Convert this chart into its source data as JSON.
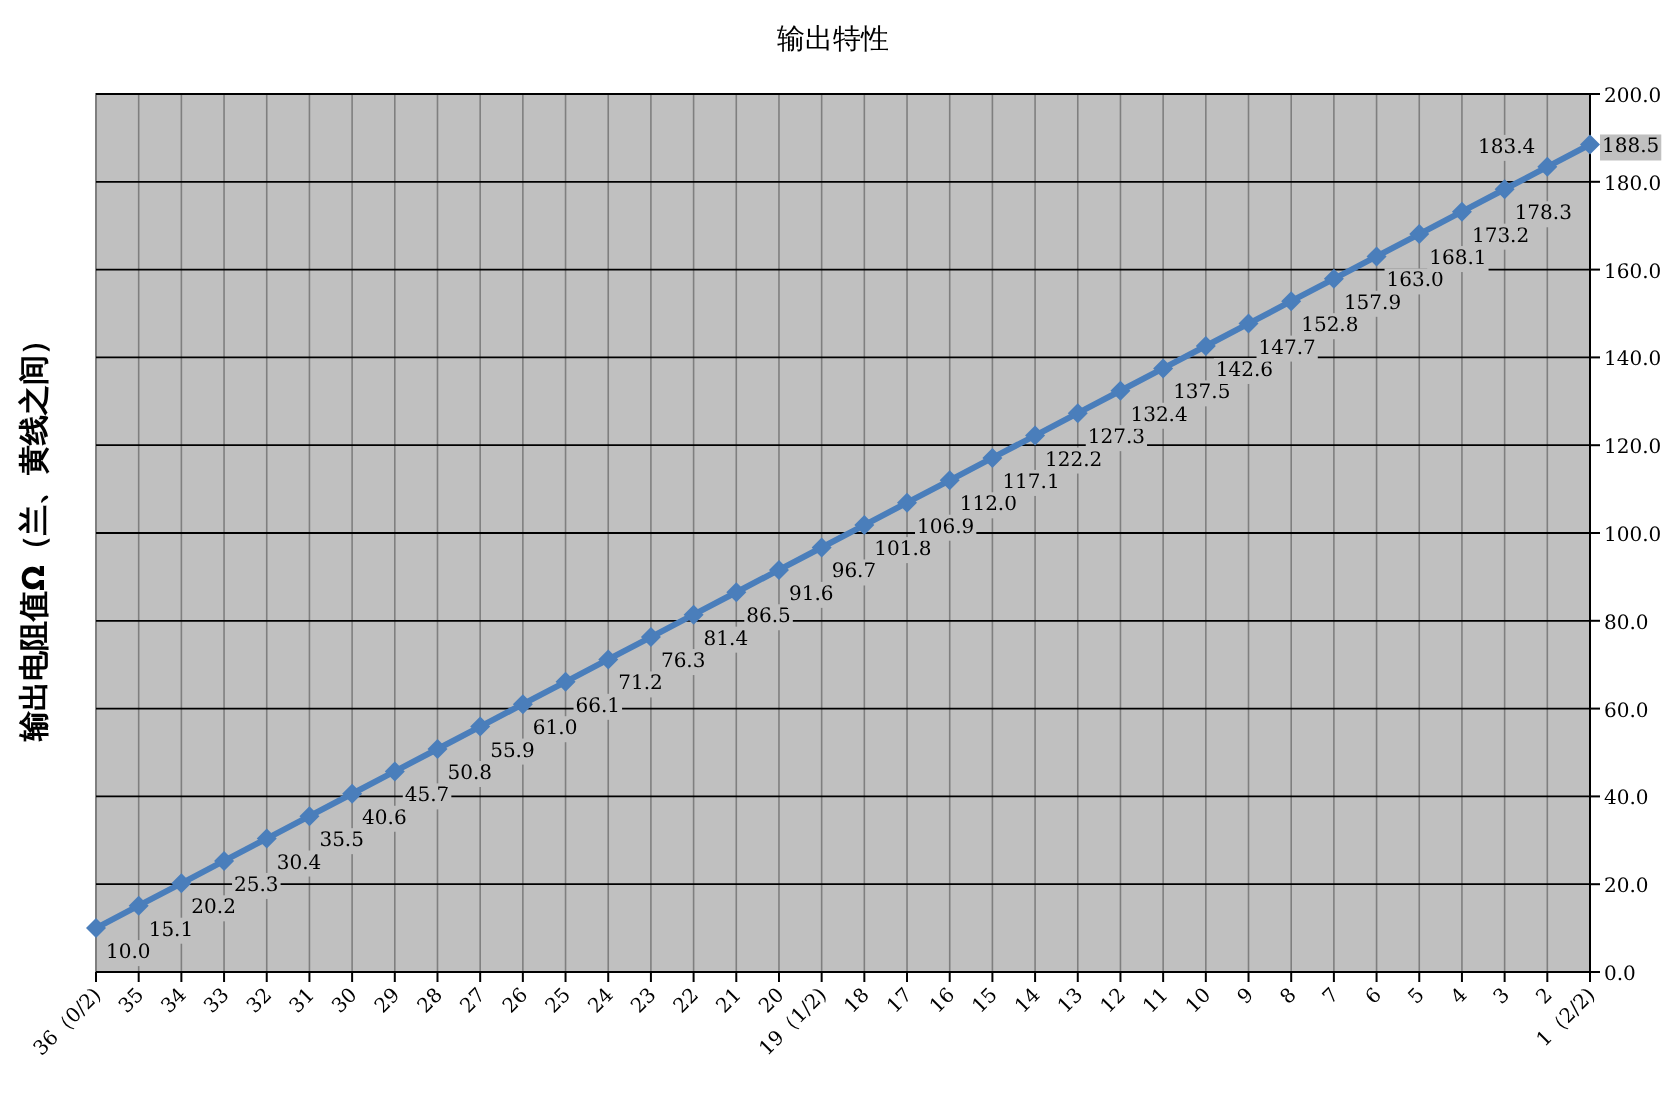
{
  "chart_data": {
    "type": "line",
    "title": "输出特性",
    "ylabel": "输出电阻值Ω（兰、黄线之间）",
    "categories": [
      "36（0/2)",
      "35",
      "34",
      "33",
      "32",
      "31",
      "30",
      "29",
      "28",
      "27",
      "26",
      "25",
      "24",
      "23",
      "22",
      "21",
      "20",
      "19（1/2)",
      "18",
      "17",
      "16",
      "15",
      "14",
      "13",
      "12",
      "11",
      "10",
      "9",
      "8",
      "7",
      "6",
      "5",
      "4",
      "3",
      "2",
      "1（2/2)"
    ],
    "series": [
      {
        "color": "#4a7ebb",
        "values": [
          10.0,
          15.1,
          20.2,
          25.3,
          30.4,
          35.5,
          40.6,
          45.7,
          50.8,
          55.9,
          61.0,
          66.1,
          71.2,
          76.3,
          81.4,
          86.5,
          91.6,
          96.7,
          101.8,
          106.9,
          112.0,
          117.1,
          122.2,
          127.3,
          132.4,
          137.5,
          142.6,
          147.7,
          152.8,
          157.9,
          163.0,
          168.1,
          173.2,
          178.3,
          183.4,
          188.5
        ],
        "value_labels": [
          "10.0",
          "15.1",
          "20.2",
          "25.3",
          "30.4",
          "35.5",
          "40.6",
          "45.7",
          "50.8",
          "55.9",
          "61.0",
          "66.1",
          "71.2",
          "76.3",
          "81.4",
          "86.5",
          "91.6",
          "96.7",
          "101.8",
          "106.9",
          "112.0",
          "117.1",
          "122.2",
          "127.3",
          "132.4",
          "137.5",
          "142.6",
          "147.7",
          "152.8",
          "157.9",
          "163.0",
          "168.1",
          "173.2",
          "178.3",
          "183.4",
          "188.5"
        ]
      }
    ],
    "ylim": [
      0,
      200
    ],
    "yticks": [
      {
        "value": 0,
        "label": "0.0"
      },
      {
        "value": 20,
        "label": "20.0"
      },
      {
        "value": 40,
        "label": "40.0"
      },
      {
        "value": 60,
        "label": "60.0"
      },
      {
        "value": 80,
        "label": "80.0"
      },
      {
        "value": 100,
        "label": "100.0"
      },
      {
        "value": 120,
        "label": "120.0"
      },
      {
        "value": 140,
        "label": "140.0"
      },
      {
        "value": 160,
        "label": "160.0"
      },
      {
        "value": 180,
        "label": "180.0"
      },
      {
        "value": 200,
        "label": "200.0"
      }
    ],
    "grid": true,
    "marker": "diamond",
    "line_style": "solid"
  }
}
